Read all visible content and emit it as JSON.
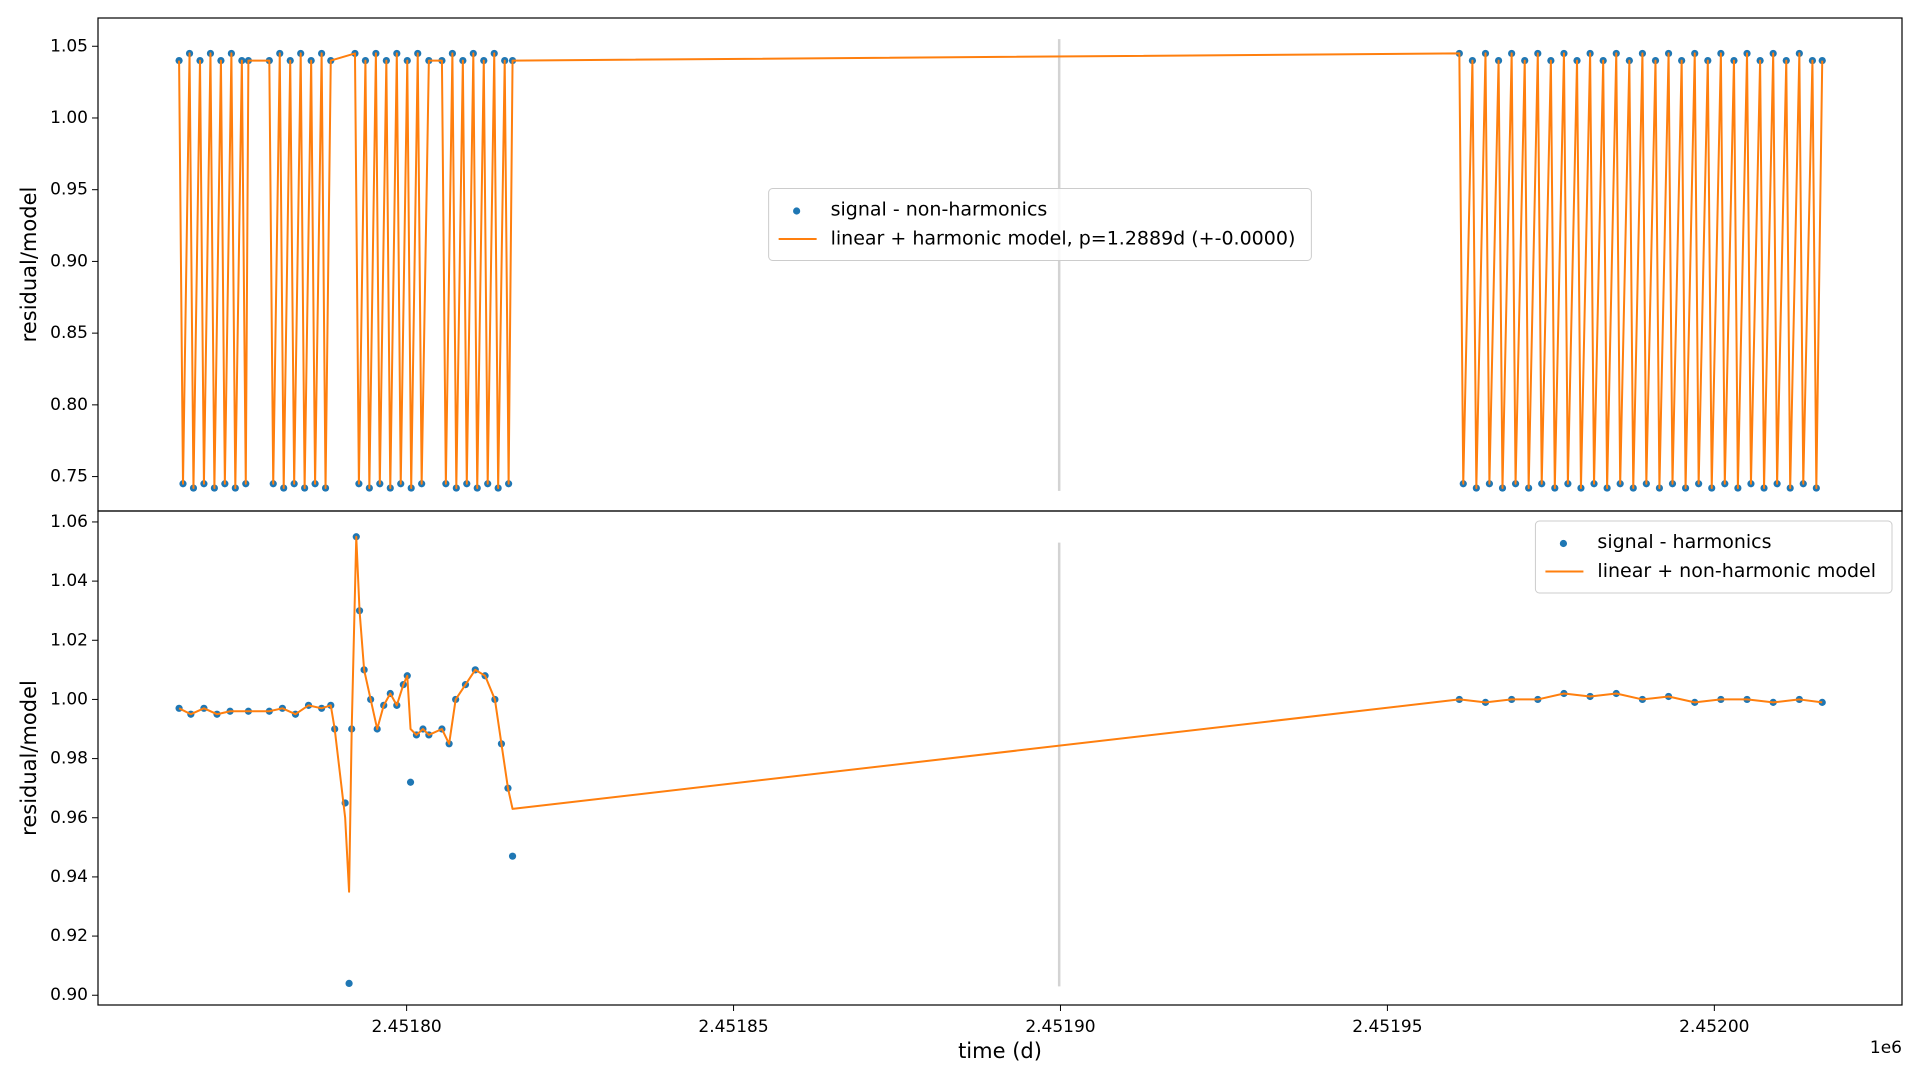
{
  "chart_data": [
    {
      "type": "line",
      "ylabel": "residual/model",
      "legend_loc": "center",
      "xlim": [
        2451752.8,
        2452028.7
      ],
      "ylim": [
        0.726,
        1.0697
      ],
      "yticks": [
        {
          "value": 0.75,
          "label": "0.75"
        },
        {
          "value": 0.8,
          "label": "0.80"
        },
        0.85,
        {
          "value": 0.9,
          "label": "0.90"
        },
        0.95,
        {
          "value": 1.0,
          "label": "1.00"
        },
        1.05
      ],
      "vline": {
        "x": 2451899.8,
        "ylim": [
          0.74,
          1.055
        ],
        "color": "#d3d3d3"
      },
      "x": [
        2451765.2,
        2451765.8,
        2451766.8,
        2451767.4,
        2451768.4,
        2451769,
        2451770,
        2451770.6,
        2451771.6,
        2451772.2,
        2451773.2,
        2451773.8,
        2451774.8,
        2451775.4,
        2451775.8,
        2451779,
        2451779.6,
        2451780.6,
        2451781.2,
        2451782.2,
        2451782.8,
        2451783.8,
        2451784.4,
        2451785.4,
        2451786,
        2451787,
        2451787.6,
        2451788.4,
        2451792.1,
        2451792.7,
        2451793.7,
        2451794.3,
        2451795.3,
        2451795.9,
        2451796.9,
        2451797.5,
        2451798.5,
        2451799.1,
        2451800.1,
        2451800.7,
        2451801.7,
        2451802.3,
        2451803.4,
        2451805.4,
        2451806,
        2451807,
        2451807.6,
        2451808.6,
        2451809.2,
        2451810.2,
        2451810.8,
        2451811.8,
        2451812.4,
        2451813.4,
        2451814,
        2451815,
        2451815.6,
        2451816.2,
        2451961,
        2451961.6,
        2451963,
        2451963.6,
        2451965,
        2451965.6,
        2451967,
        2451967.6,
        2451969,
        2451969.6,
        2451971,
        2451971.6,
        2451973,
        2451973.6,
        2451975,
        2451975.6,
        2451977,
        2451977.6,
        2451979,
        2451979.6,
        2451981,
        2451981.6,
        2451983,
        2451983.6,
        2451985,
        2451985.6,
        2451987,
        2451987.6,
        2451989,
        2451989.6,
        2451991,
        2451991.6,
        2451993,
        2451993.6,
        2451995,
        2451995.6,
        2451997,
        2451997.6,
        2451999,
        2451999.6,
        2452001,
        2452001.6,
        2452003,
        2452003.6,
        2452005,
        2452005.6,
        2452007,
        2452007.6,
        2452009,
        2452009.6,
        2452011,
        2452011.6,
        2452013,
        2452013.6,
        2452015,
        2452015.6,
        2452016.5
      ],
      "series": [
        {
          "name": "signal - non-harmonics",
          "mode": "markers",
          "color": "#1f77b4",
          "values": [
            1.04,
            0.745,
            1.045,
            0.742,
            1.04,
            0.745,
            1.045,
            0.742,
            1.04,
            0.745,
            1.045,
            0.742,
            1.04,
            0.745,
            1.04,
            1.04,
            0.745,
            1.045,
            0.742,
            1.04,
            0.745,
            1.045,
            0.742,
            1.04,
            0.745,
            1.045,
            0.742,
            1.04,
            1.045,
            0.745,
            1.04,
            0.742,
            1.045,
            0.745,
            1.04,
            0.742,
            1.045,
            0.745,
            1.04,
            0.742,
            1.045,
            0.745,
            1.04,
            1.04,
            0.745,
            1.045,
            0.742,
            1.04,
            0.745,
            1.045,
            0.742,
            1.04,
            0.745,
            1.045,
            0.742,
            1.04,
            0.745,
            1.04,
            1.045,
            0.745,
            1.04,
            0.742,
            1.045,
            0.745,
            1.04,
            0.742,
            1.045,
            0.745,
            1.04,
            0.742,
            1.045,
            0.745,
            1.04,
            0.742,
            1.045,
            0.745,
            1.04,
            0.742,
            1.045,
            0.745,
            1.04,
            0.742,
            1.045,
            0.745,
            1.04,
            0.742,
            1.045,
            0.745,
            1.04,
            0.742,
            1.045,
            0.745,
            1.04,
            0.742,
            1.045,
            0.745,
            1.04,
            0.742,
            1.045,
            0.745,
            1.04,
            0.742,
            1.045,
            0.745,
            1.04,
            0.742,
            1.045,
            0.745,
            1.04,
            0.742,
            1.045,
            0.745,
            1.04,
            0.742,
            1.04
          ]
        },
        {
          "name": "linear + harmonic model, p=1.2889d (+-0.0000)",
          "mode": "lines",
          "color": "#ff7f0e",
          "values": [
            1.04,
            0.745,
            1.045,
            0.742,
            1.04,
            0.745,
            1.045,
            0.742,
            1.04,
            0.745,
            1.045,
            0.742,
            1.04,
            0.745,
            1.04,
            1.04,
            0.745,
            1.045,
            0.742,
            1.04,
            0.745,
            1.045,
            0.742,
            1.04,
            0.745,
            1.045,
            0.742,
            1.04,
            1.045,
            0.745,
            1.04,
            0.742,
            1.045,
            0.745,
            1.04,
            0.742,
            1.045,
            0.745,
            1.04,
            0.742,
            1.045,
            0.745,
            1.04,
            1.04,
            0.745,
            1.045,
            0.742,
            1.04,
            0.745,
            1.045,
            0.742,
            1.04,
            0.745,
            1.045,
            0.742,
            1.04,
            0.745,
            1.04,
            1.045,
            0.745,
            1.04,
            0.742,
            1.045,
            0.745,
            1.04,
            0.742,
            1.045,
            0.745,
            1.04,
            0.742,
            1.045,
            0.745,
            1.04,
            0.742,
            1.045,
            0.745,
            1.04,
            0.742,
            1.045,
            0.745,
            1.04,
            0.742,
            1.045,
            0.745,
            1.04,
            0.742,
            1.045,
            0.745,
            1.04,
            0.742,
            1.045,
            0.745,
            1.04,
            0.742,
            1.045,
            0.745,
            1.04,
            0.742,
            1.045,
            0.745,
            1.04,
            0.742,
            1.045,
            0.745,
            1.04,
            0.742,
            1.045,
            0.745,
            1.04,
            0.742,
            1.045,
            0.745,
            1.04,
            0.742,
            1.04
          ]
        }
      ]
    },
    {
      "type": "line",
      "ylabel": "residual/model",
      "xlabel": "time (d)",
      "x_offset_label": "1e6",
      "legend_loc": "upper right",
      "xlim": [
        2451752.8,
        2452028.7
      ],
      "ylim": [
        0.8967,
        1.0637
      ],
      "xticks": [
        {
          "value": 2451800,
          "label": "2.45180"
        },
        {
          "value": 2451850,
          "label": "2.45185"
        },
        {
          "value": 2451900,
          "label": "2.45190"
        },
        {
          "value": 2451950,
          "label": "2.45195"
        },
        {
          "value": 2452000,
          "label": "2.45200"
        }
      ],
      "yticks": [
        {
          "value": 0.9,
          "label": "0.90"
        },
        0.92,
        0.94,
        0.96,
        0.98,
        {
          "value": 1.0,
          "label": "1.00"
        },
        1.02,
        1.04,
        1.06
      ],
      "vline": {
        "x": 2451899.8,
        "ylim": [
          0.903,
          1.053
        ],
        "color": "#d3d3d3"
      },
      "x": [
        2451765.2,
        2451767,
        2451769,
        2451771,
        2451773,
        2451775.8,
        2451779,
        2451781,
        2451783,
        2451785,
        2451787,
        2451788.4,
        2451789,
        2451790.6,
        2451791.2,
        2451791.6,
        2451792.3,
        2451792.8,
        2451793.5,
        2451794.5,
        2451795.5,
        2451796.5,
        2451797.5,
        2451798.5,
        2451799.5,
        2451800.1,
        2451800.6,
        2451801.5,
        2451802.5,
        2451803.4,
        2451805.4,
        2451806.5,
        2451807.5,
        2451809,
        2451810.5,
        2451812,
        2451813.5,
        2451814.5,
        2451815.5,
        2451816.2,
        2451961,
        2451965,
        2451969,
        2451973,
        2451977,
        2451981,
        2451985,
        2451989,
        2451993,
        2451997,
        2452001,
        2452005,
        2452009,
        2452013,
        2452016.5
      ],
      "series": [
        {
          "name": "signal - harmonics",
          "mode": "markers",
          "color": "#1f77b4",
          "values": [
            0.997,
            0.995,
            0.997,
            0.995,
            0.996,
            0.996,
            0.996,
            0.997,
            0.995,
            0.998,
            0.997,
            0.998,
            0.99,
            0.965,
            0.904,
            0.99,
            1.055,
            1.03,
            1.01,
            1.0,
            0.99,
            0.998,
            1.002,
            0.998,
            1.005,
            1.008,
            0.972,
            0.988,
            0.99,
            0.988,
            0.99,
            0.985,
            1.0,
            1.005,
            1.01,
            1.008,
            1.0,
            0.985,
            0.97,
            0.947,
            1.0,
            0.999,
            1.0,
            1.0,
            1.002,
            1.001,
            1.002,
            1.0,
            1.001,
            0.999,
            1.0,
            1.0,
            0.999,
            1.0,
            0.999
          ]
        },
        {
          "name": "linear + non-harmonic model",
          "mode": "lines",
          "color": "#ff7f0e",
          "values": [
            0.997,
            0.995,
            0.997,
            0.995,
            0.996,
            0.996,
            0.996,
            0.997,
            0.995,
            0.998,
            0.997,
            0.998,
            0.99,
            0.96,
            0.935,
            0.99,
            1.055,
            1.03,
            1.01,
            1.0,
            0.99,
            0.998,
            1.002,
            0.998,
            1.005,
            1.008,
            0.99,
            0.988,
            0.99,
            0.988,
            0.99,
            0.985,
            1.0,
            1.005,
            1.01,
            1.008,
            1.0,
            0.985,
            0.97,
            0.963,
            1.0,
            0.999,
            1.0,
            1.0,
            1.002,
            1.001,
            1.002,
            1.0,
            1.001,
            0.999,
            1.0,
            1.0,
            0.999,
            1.0,
            0.999
          ]
        }
      ]
    }
  ]
}
